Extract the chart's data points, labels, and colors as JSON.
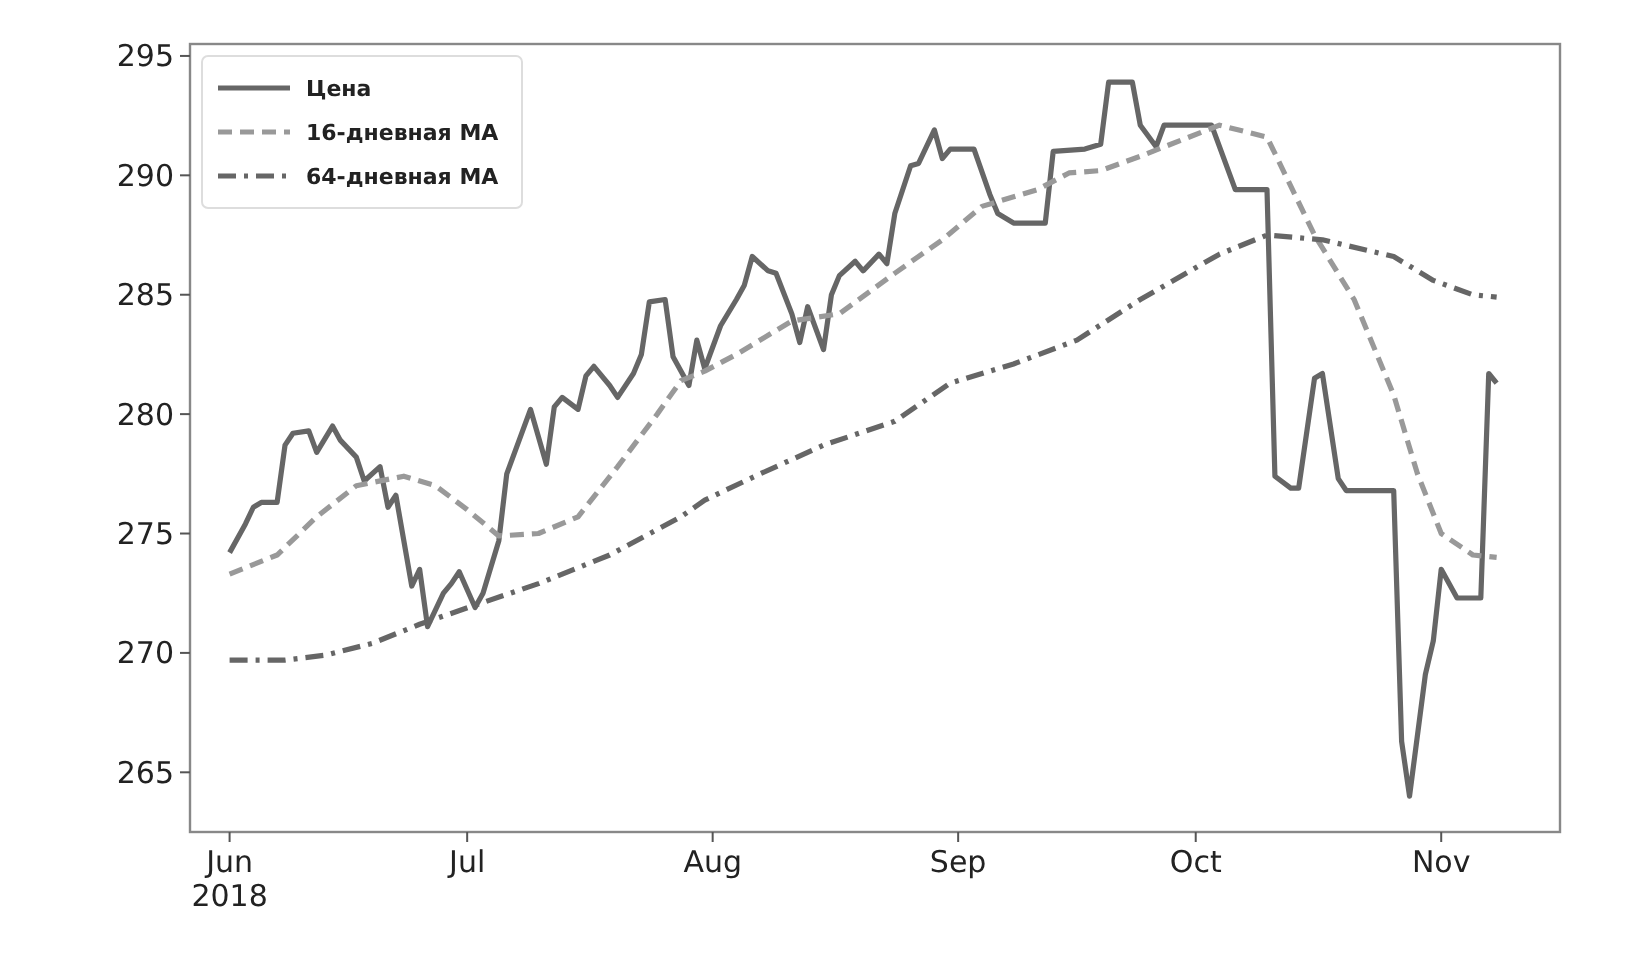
{
  "chart_data": {
    "type": "line",
    "xlim": [
      "2018-05-27",
      "2018-11-16"
    ],
    "xticks": [
      {
        "value": "2018-06-01",
        "label": "Jun\n2018"
      },
      {
        "value": "2018-07-01",
        "label": "Jul"
      },
      {
        "value": "2018-08-01",
        "label": "Aug"
      },
      {
        "value": "2018-09-01",
        "label": "Sep"
      },
      {
        "value": "2018-10-01",
        "label": "Oct"
      },
      {
        "value": "2018-11-01",
        "label": "Nov"
      }
    ],
    "ylim": [
      262.5,
      295.5
    ],
    "yticks": [
      265,
      270,
      275,
      280,
      285,
      290,
      295
    ],
    "grid": false,
    "legend": "top left",
    "series": [
      {
        "name": "Цена",
        "color": "#666666",
        "line_style": "solid",
        "x": [
          "2018-06-01",
          "2018-06-03",
          "2018-06-04",
          "2018-06-05",
          "2018-06-07",
          "2018-06-08",
          "2018-06-09",
          "2018-06-11",
          "2018-06-12",
          "2018-06-14",
          "2018-06-15",
          "2018-06-17",
          "2018-06-18",
          "2018-06-20",
          "2018-06-21",
          "2018-06-22",
          "2018-06-24",
          "2018-06-25",
          "2018-06-26",
          "2018-06-28",
          "2018-06-29",
          "2018-06-30",
          "2018-07-02",
          "2018-07-03",
          "2018-07-05",
          "2018-07-06",
          "2018-07-08",
          "2018-07-09",
          "2018-07-11",
          "2018-07-12",
          "2018-07-13",
          "2018-07-15",
          "2018-07-16",
          "2018-07-17",
          "2018-07-19",
          "2018-07-20",
          "2018-07-22",
          "2018-07-23",
          "2018-07-24",
          "2018-07-26",
          "2018-07-27",
          "2018-07-29",
          "2018-07-30",
          "2018-07-31",
          "2018-08-02",
          "2018-08-04",
          "2018-08-05",
          "2018-08-06",
          "2018-08-08",
          "2018-08-09",
          "2018-08-11",
          "2018-08-12",
          "2018-08-13",
          "2018-08-15",
          "2018-08-16",
          "2018-08-17",
          "2018-08-19",
          "2018-08-20",
          "2018-08-22",
          "2018-08-23",
          "2018-08-24",
          "2018-08-26",
          "2018-08-27",
          "2018-08-29",
          "2018-08-30",
          "2018-08-31",
          "2018-09-03",
          "2018-09-05",
          "2018-09-06",
          "2018-09-08",
          "2018-09-12",
          "2018-09-13",
          "2018-09-17",
          "2018-09-19",
          "2018-09-20",
          "2018-09-23",
          "2018-09-24",
          "2018-09-26",
          "2018-09-27",
          "2018-10-03",
          "2018-10-06",
          "2018-10-10",
          "2018-10-11",
          "2018-10-13",
          "2018-10-14",
          "2018-10-16",
          "2018-10-17",
          "2018-10-19",
          "2018-10-20",
          "2018-10-26",
          "2018-10-27",
          "2018-10-28",
          "2018-10-30",
          "2018-10-31",
          "2018-11-01",
          "2018-11-03",
          "2018-11-06",
          "2018-11-07",
          "2018-11-08"
        ],
        "values": [
          274.2,
          275.4,
          276.1,
          276.3,
          276.3,
          278.7,
          279.2,
          279.3,
          278.4,
          279.5,
          278.9,
          278.2,
          277.2,
          277.8,
          276.1,
          276.6,
          272.8,
          273.5,
          271.1,
          272.5,
          272.9,
          273.4,
          271.9,
          272.5,
          274.7,
          277.5,
          279.3,
          280.2,
          277.9,
          280.3,
          280.7,
          280.2,
          281.6,
          282.0,
          281.2,
          280.7,
          281.7,
          282.5,
          284.7,
          284.8,
          282.4,
          281.2,
          283.1,
          281.9,
          283.7,
          284.8,
          285.4,
          286.6,
          286.0,
          285.9,
          284.2,
          283.0,
          284.5,
          282.7,
          285.0,
          285.8,
          286.4,
          286.0,
          286.7,
          286.3,
          288.4,
          290.4,
          290.5,
          291.9,
          290.7,
          291.1,
          291.1,
          289.2,
          288.4,
          288.0,
          288.0,
          291.0,
          291.1,
          291.3,
          293.9,
          293.9,
          292.1,
          291.2,
          292.1,
          292.1,
          289.4,
          289.4,
          277.4,
          276.9,
          276.9,
          281.5,
          281.7,
          277.3,
          276.8,
          276.8,
          266.3,
          264.0,
          269.1,
          270.5,
          273.5,
          272.3,
          272.3,
          281.7,
          281.3
        ]
      },
      {
        "name": "16-дневная MA",
        "color": "#999999",
        "line_style": "dashed",
        "x": [
          "2018-06-01",
          "2018-06-07",
          "2018-06-12",
          "2018-06-17",
          "2018-06-23",
          "2018-06-27",
          "2018-07-01",
          "2018-07-05",
          "2018-07-10",
          "2018-07-15",
          "2018-07-20",
          "2018-07-25",
          "2018-07-28",
          "2018-07-31",
          "2018-08-04",
          "2018-08-11",
          "2018-08-17",
          "2018-08-24",
          "2018-08-30",
          "2018-09-04",
          "2018-09-11",
          "2018-09-15",
          "2018-09-19",
          "2018-09-24",
          "2018-10-04",
          "2018-10-10",
          "2018-10-16",
          "2018-10-21",
          "2018-10-26",
          "2018-10-29",
          "2018-11-01",
          "2018-11-05",
          "2018-11-08"
        ],
        "values": [
          273.3,
          274.1,
          275.7,
          277.0,
          277.4,
          277.0,
          276.0,
          274.9,
          275.0,
          275.7,
          277.8,
          280.0,
          281.4,
          281.8,
          282.5,
          283.9,
          284.2,
          285.9,
          287.3,
          288.7,
          289.4,
          290.1,
          290.2,
          290.8,
          292.1,
          291.6,
          287.5,
          284.8,
          280.8,
          277.5,
          275.0,
          274.1,
          274.0
        ]
      },
      {
        "name": "64-дневная MA",
        "color": "#666666",
        "line_style": "dashdot",
        "x": [
          "2018-06-01",
          "2018-06-08",
          "2018-06-13",
          "2018-06-19",
          "2018-06-25",
          "2018-07-02",
          "2018-07-10",
          "2018-07-19",
          "2018-07-28",
          "2018-07-31",
          "2018-08-07",
          "2018-08-15",
          "2018-08-24",
          "2018-08-31",
          "2018-09-08",
          "2018-09-16",
          "2018-09-24",
          "2018-10-04",
          "2018-10-10",
          "2018-10-17",
          "2018-10-26",
          "2018-10-31",
          "2018-11-05",
          "2018-11-08"
        ],
        "values": [
          269.7,
          269.7,
          269.9,
          270.4,
          271.2,
          272.0,
          272.9,
          274.1,
          275.7,
          276.4,
          277.5,
          278.7,
          279.7,
          281.3,
          282.1,
          283.1,
          284.8,
          286.7,
          287.5,
          287.3,
          286.6,
          285.6,
          285.0,
          284.9
        ]
      }
    ]
  }
}
